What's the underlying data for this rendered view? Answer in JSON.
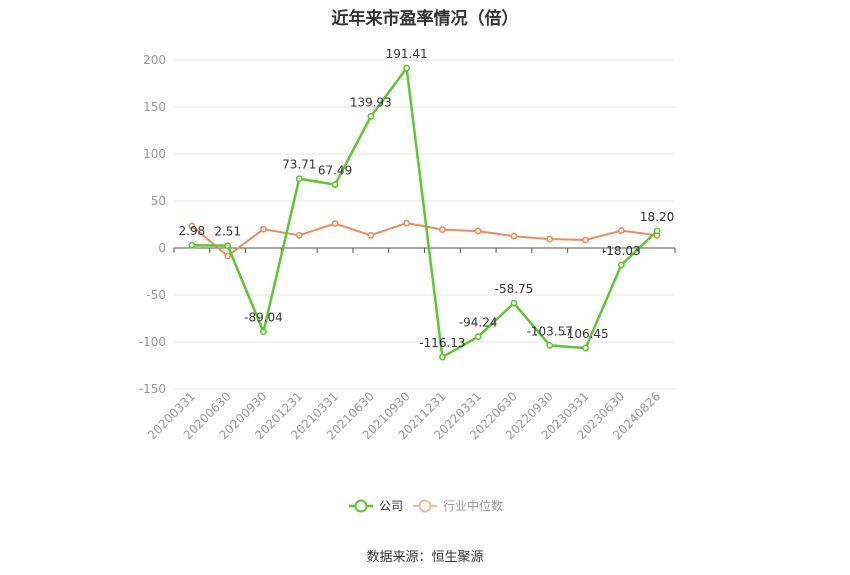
{
  "chart_data": {
    "type": "line",
    "title": "近年来市盈率情况（倍）",
    "categories": [
      "20200331",
      "20200630",
      "20200930",
      "20201231",
      "20210331",
      "20210630",
      "20210930",
      "20211231",
      "20220331",
      "20220630",
      "20220930",
      "20230331",
      "20230630",
      "20240826"
    ],
    "ylim": [
      -150,
      200
    ],
    "yticks": [
      -150,
      -100,
      -50,
      0,
      50,
      100,
      150,
      200
    ],
    "grid": true,
    "legend_position": "bottom",
    "series": [
      {
        "name": "公司",
        "color": "#5cc72f",
        "values": [
          2.98,
          2.51,
          -89.04,
          73.71,
          67.49,
          139.93,
          191.41,
          -116.13,
          -94.24,
          -58.75,
          -103.57,
          -106.45,
          -18.03,
          18.2
        ],
        "labels": [
          "2.98",
          "2.51",
          "-89.04",
          "73.71",
          "67.49",
          "139.93",
          "191.41",
          "-116.13",
          "-94.24",
          "-58.75",
          "-103.57",
          "-106.45",
          "-18.03",
          "18.20"
        ]
      },
      {
        "name": "行业中位数",
        "color": "#f08a5d",
        "values": [
          23.5,
          -8.5,
          20.0,
          13.5,
          26.0,
          13.5,
          26.5,
          19.5,
          18.0,
          12.5,
          9.5,
          8.5,
          18.5,
          13.5
        ]
      }
    ],
    "source": "数据来源：恒生聚源"
  }
}
